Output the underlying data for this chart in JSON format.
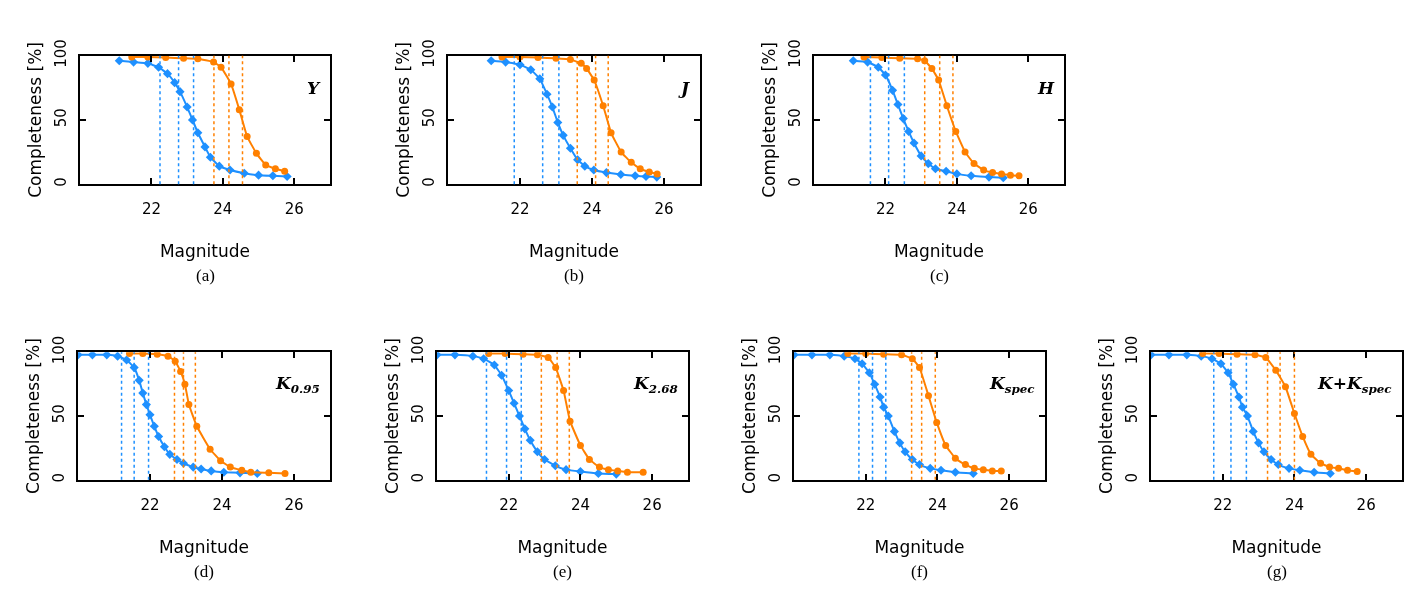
{
  "chart_data": [
    {
      "type": "line",
      "xlabel": "Magnitude",
      "ylabel": "Completeness [%]",
      "annotations": [
        "Y",
        "(a)"
      ],
      "xlim": [
        20,
        27
      ],
      "xticks": [
        22,
        24,
        26
      ],
      "ylim": [
        0,
        100
      ],
      "yticks": [
        0,
        50,
        100
      ],
      "line_style": "solid",
      "series": [
        {
          "color": "#1e90ff",
          "marker": "diamond",
          "x": [
            21.1,
            21.5,
            21.9,
            22.2,
            22.45,
            22.65,
            22.8,
            23.0,
            23.15,
            23.3,
            23.5,
            23.65,
            23.9,
            24.2,
            24.6,
            25.0,
            25.4,
            25.8
          ],
          "values": [
            96,
            95,
            94,
            91,
            86,
            79,
            72,
            60,
            50,
            40,
            29,
            21,
            14,
            11,
            8.5,
            7,
            6.5,
            6
          ]
        },
        {
          "color": "#ff8000",
          "marker": "circle",
          "x": [
            21.45,
            21.9,
            22.4,
            22.9,
            23.3,
            23.74,
            23.95,
            24.23,
            24.46,
            24.68,
            24.94,
            25.2,
            25.47,
            25.73
          ],
          "values": [
            99,
            99,
            98.5,
            98,
            97.5,
            95,
            91,
            78,
            58,
            37,
            24,
            15,
            12,
            10
          ]
        }
      ],
      "ref_lines": [
        {
          "axis": "x",
          "value": 22.24,
          "color": "#1e90ff",
          "line_style": "dotted"
        },
        {
          "axis": "x",
          "value": 22.76,
          "color": "#1e90ff",
          "line_style": "dotted"
        },
        {
          "axis": "x",
          "value": 23.18,
          "color": "#1e90ff",
          "line_style": "dotted"
        },
        {
          "axis": "x",
          "value": 23.75,
          "color": "#ff8000",
          "line_style": "dotted"
        },
        {
          "axis": "x",
          "value": 24.17,
          "color": "#ff8000",
          "line_style": "dotted"
        },
        {
          "axis": "x",
          "value": 24.55,
          "color": "#ff8000",
          "line_style": "dotted"
        }
      ]
    },
    {
      "type": "line",
      "xlabel": "Magnitude",
      "ylabel": "Completeness [%]",
      "annotations": [
        "J",
        "(b)"
      ],
      "xlim": [
        20,
        27
      ],
      "xticks": [
        22,
        24,
        26
      ],
      "ylim": [
        0,
        100
      ],
      "yticks": [
        0,
        50,
        100
      ],
      "line_style": "solid",
      "series": [
        {
          "color": "#1e90ff",
          "marker": "diamond",
          "x": [
            21.2,
            21.6,
            22.0,
            22.3,
            22.55,
            22.75,
            22.9,
            23.05,
            23.2,
            23.4,
            23.6,
            23.8,
            24.05,
            24.4,
            24.8,
            25.2,
            25.5,
            25.8
          ],
          "values": [
            96,
            95,
            93,
            89,
            82,
            70,
            60,
            48,
            38,
            28,
            19,
            14,
            11,
            9,
            7.5,
            6.5,
            6,
            5.5
          ]
        },
        {
          "color": "#ff8000",
          "marker": "circle",
          "x": [
            21.5,
            22.0,
            22.5,
            23.0,
            23.4,
            23.7,
            23.85,
            24.06,
            24.31,
            24.53,
            24.81,
            25.09,
            25.34,
            25.59,
            25.81
          ],
          "values": [
            99,
            99,
            98.5,
            98,
            97,
            94,
            90,
            81,
            61,
            40,
            25,
            17,
            12,
            9.5,
            8
          ]
        }
      ],
      "ref_lines": [
        {
          "axis": "x",
          "value": 21.84,
          "color": "#1e90ff",
          "line_style": "dotted"
        },
        {
          "axis": "x",
          "value": 22.63,
          "color": "#1e90ff",
          "line_style": "dotted"
        },
        {
          "axis": "x",
          "value": 23.08,
          "color": "#1e90ff",
          "line_style": "dotted"
        },
        {
          "axis": "x",
          "value": 23.59,
          "color": "#ff8000",
          "line_style": "dotted"
        },
        {
          "axis": "x",
          "value": 24.1,
          "color": "#ff8000",
          "line_style": "dotted"
        },
        {
          "axis": "x",
          "value": 24.45,
          "color": "#ff8000",
          "line_style": "dotted"
        }
      ]
    },
    {
      "type": "line",
      "xlabel": "Magnitude",
      "ylabel": "Completeness [%]",
      "annotations": [
        "H",
        "(c)"
      ],
      "xlim": [
        20,
        27
      ],
      "xticks": [
        22,
        24,
        26
      ],
      "ylim": [
        0,
        100
      ],
      "yticks": [
        0,
        50,
        100
      ],
      "line_style": "solid",
      "series": [
        {
          "color": "#1e90ff",
          "marker": "diamond",
          "x": [
            21.1,
            21.5,
            21.8,
            22.0,
            22.2,
            22.35,
            22.5,
            22.65,
            22.8,
            23.0,
            23.2,
            23.4,
            23.7,
            24.0,
            24.4,
            24.9,
            25.3
          ],
          "values": [
            96,
            95,
            91,
            85,
            73,
            62,
            51,
            41,
            32,
            22,
            16,
            12,
            10,
            8,
            6.5,
            5.5,
            5
          ]
        },
        {
          "color": "#ff8000",
          "marker": "circle",
          "x": [
            21.4,
            21.9,
            22.4,
            22.9,
            23.1,
            23.3,
            23.49,
            23.72,
            23.97,
            24.23,
            24.48,
            24.75,
            25.0,
            25.25,
            25.5,
            25.74
          ],
          "values": [
            99,
            98.5,
            98,
            97.5,
            96,
            90,
            81,
            61,
            41,
            25,
            16,
            11,
            9,
            8,
            7,
            6.5
          ]
        }
      ],
      "ref_lines": [
        {
          "axis": "x",
          "value": 21.58,
          "color": "#1e90ff",
          "line_style": "dotted"
        },
        {
          "axis": "x",
          "value": 22.09,
          "color": "#1e90ff",
          "line_style": "dotted"
        },
        {
          "axis": "x",
          "value": 22.53,
          "color": "#1e90ff",
          "line_style": "dotted"
        },
        {
          "axis": "x",
          "value": 23.1,
          "color": "#ff8000",
          "line_style": "dotted"
        },
        {
          "axis": "x",
          "value": 23.52,
          "color": "#ff8000",
          "line_style": "dotted"
        },
        {
          "axis": "x",
          "value": 23.89,
          "color": "#ff8000",
          "line_style": "dotted"
        }
      ]
    },
    {
      "type": "line",
      "xlabel": "Magnitude",
      "ylabel": "Completeness [%]",
      "annotations": [
        "K$_{0.95}$",
        "(d)"
      ],
      "xlim": [
        20,
        27
      ],
      "xticks": [
        22,
        24,
        26
      ],
      "ylim": [
        0,
        100
      ],
      "yticks": [
        0,
        50,
        100
      ],
      "line_style": "solid",
      "series": [
        {
          "color": "#1e90ff",
          "marker": "diamond",
          "x": [
            20.0,
            20.4,
            20.8,
            21.1,
            21.35,
            21.56,
            21.7,
            21.8,
            21.9,
            22.0,
            22.12,
            22.24,
            22.4,
            22.55,
            22.75,
            22.93,
            23.2,
            23.42,
            23.7,
            24.05,
            24.5,
            24.98
          ],
          "values": [
            98,
            98,
            98,
            97,
            94,
            88,
            78,
            68,
            59,
            51,
            42,
            34,
            26,
            20,
            16,
            13,
            10,
            8.5,
            7,
            6,
            5.5,
            5
          ]
        },
        {
          "color": "#ff8000",
          "marker": "circle",
          "x": [
            21.43,
            21.8,
            22.2,
            22.5,
            22.7,
            22.85,
            22.97,
            23.08,
            23.3,
            23.67,
            23.96,
            24.23,
            24.55,
            24.8,
            25.3,
            25.75
          ],
          "values": [
            99,
            99,
            98.5,
            97,
            93,
            85,
            75,
            59,
            42,
            24,
            15,
            10,
            7.5,
            6,
            5.5,
            5
          ]
        }
      ],
      "ref_lines": [
        {
          "axis": "x",
          "value": 21.21,
          "color": "#1e90ff",
          "line_style": "dotted"
        },
        {
          "axis": "x",
          "value": 21.56,
          "color": "#1e90ff",
          "line_style": "dotted"
        },
        {
          "axis": "x",
          "value": 21.96,
          "color": "#1e90ff",
          "line_style": "dotted"
        },
        {
          "axis": "x",
          "value": 22.68,
          "color": "#ff8000",
          "line_style": "dotted"
        },
        {
          "axis": "x",
          "value": 22.93,
          "color": "#ff8000",
          "line_style": "dotted"
        },
        {
          "axis": "x",
          "value": 23.26,
          "color": "#ff8000",
          "line_style": "dotted"
        }
      ]
    },
    {
      "type": "line",
      "xlabel": "Magnitude",
      "ylabel": "Completeness [%]",
      "annotations": [
        "K$_{2.68}$",
        "(e)"
      ],
      "xlim": [
        20,
        27
      ],
      "xticks": [
        22,
        24,
        26
      ],
      "ylim": [
        0,
        100
      ],
      "yticks": [
        0,
        50,
        100
      ],
      "line_style": "solid",
      "series": [
        {
          "color": "#1e90ff",
          "marker": "diamond",
          "x": [
            20.0,
            20.5,
            21.0,
            21.3,
            21.6,
            21.8,
            22.0,
            22.15,
            22.3,
            22.45,
            22.6,
            22.8,
            23.0,
            23.3,
            23.6,
            24.0,
            24.5,
            25.0
          ],
          "values": [
            98,
            98,
            97,
            95,
            90,
            82,
            70,
            60,
            50,
            40,
            31,
            22,
            16,
            11,
            8,
            6.5,
            5,
            4.5
          ]
        },
        {
          "color": "#ff8000",
          "marker": "circle",
          "x": [
            21.44,
            21.9,
            22.4,
            22.8,
            23.1,
            23.31,
            23.53,
            23.71,
            24.0,
            24.25,
            24.53,
            24.78,
            25.04,
            25.31,
            25.75
          ],
          "values": [
            99,
            99,
            98.5,
            98,
            96,
            88,
            70,
            46,
            27,
            16,
            10,
            8,
            7,
            6,
            6
          ]
        }
      ],
      "ref_lines": [
        {
          "axis": "x",
          "value": 21.38,
          "color": "#1e90ff",
          "line_style": "dotted"
        },
        {
          "axis": "x",
          "value": 21.94,
          "color": "#1e90ff",
          "line_style": "dotted"
        },
        {
          "axis": "x",
          "value": 22.35,
          "color": "#1e90ff",
          "line_style": "dotted"
        },
        {
          "axis": "x",
          "value": 22.91,
          "color": "#ff8000",
          "line_style": "dotted"
        },
        {
          "axis": "x",
          "value": 23.35,
          "color": "#ff8000",
          "line_style": "dotted"
        },
        {
          "axis": "x",
          "value": 23.69,
          "color": "#ff8000",
          "line_style": "dotted"
        }
      ]
    },
    {
      "type": "line",
      "xlabel": "Magnitude",
      "ylabel": "Completeness [%]",
      "annotations": [
        "K$_{spec}$",
        "(f)"
      ],
      "xlim": [
        20,
        27
      ],
      "xticks": [
        22,
        24,
        26
      ],
      "ylim": [
        0,
        100
      ],
      "yticks": [
        0,
        50,
        100
      ],
      "line_style": "solid",
      "series": [
        {
          "color": "#1e90ff",
          "marker": "diamond",
          "x": [
            20.0,
            20.5,
            21.0,
            21.4,
            21.7,
            21.9,
            22.1,
            22.25,
            22.4,
            22.5,
            22.63,
            22.8,
            22.95,
            23.1,
            23.3,
            23.5,
            23.8,
            24.1,
            24.5,
            25.0
          ],
          "values": [
            98,
            98,
            98,
            97,
            95,
            91,
            84,
            75,
            65,
            57,
            50,
            38,
            29,
            22,
            16,
            12,
            9,
            7.5,
            6,
            5
          ]
        },
        {
          "color": "#ff8000",
          "marker": "circle",
          "x": [
            21.5,
            22.0,
            22.5,
            23.0,
            23.3,
            23.5,
            23.75,
            23.98,
            24.23,
            24.5,
            24.78,
            25.03,
            25.28,
            25.53,
            25.78
          ],
          "values": [
            99,
            99,
            98.5,
            98,
            95,
            88,
            66,
            45,
            27,
            17,
            12,
            9,
            8,
            7,
            7
          ]
        }
      ],
      "ref_lines": [
        {
          "axis": "x",
          "value": 21.81,
          "color": "#1e90ff",
          "line_style": "dotted"
        },
        {
          "axis": "x",
          "value": 22.19,
          "color": "#1e90ff",
          "line_style": "dotted"
        },
        {
          "axis": "x",
          "value": 22.56,
          "color": "#1e90ff",
          "line_style": "dotted"
        },
        {
          "axis": "x",
          "value": 23.28,
          "color": "#ff8000",
          "line_style": "dotted"
        },
        {
          "axis": "x",
          "value": 23.56,
          "color": "#ff8000",
          "line_style": "dotted"
        },
        {
          "axis": "x",
          "value": 23.94,
          "color": "#ff8000",
          "line_style": "dotted"
        }
      ]
    },
    {
      "type": "line",
      "xlabel": "Magnitude",
      "ylabel": "Completeness [%]",
      "annotations": [
        "K+K$_{spec}$",
        "(g)"
      ],
      "xlim": [
        20,
        27
      ],
      "xticks": [
        22,
        24,
        26
      ],
      "ylim": [
        0,
        100
      ],
      "yticks": [
        0,
        50,
        100
      ],
      "line_style": "solid",
      "series": [
        {
          "color": "#1e90ff",
          "marker": "diamond",
          "x": [
            20.0,
            20.5,
            21.0,
            21.4,
            21.7,
            21.95,
            22.15,
            22.3,
            22.45,
            22.55,
            22.69,
            22.85,
            23.0,
            23.15,
            23.35,
            23.55,
            23.85,
            24.15,
            24.55,
            25.0
          ],
          "values": [
            98,
            98,
            98,
            97,
            95,
            91,
            84,
            75,
            65,
            57,
            50,
            38,
            29,
            22,
            16,
            12,
            9,
            7.5,
            6,
            5
          ]
        },
        {
          "color": "#ff8000",
          "marker": "circle",
          "x": [
            21.44,
            21.9,
            22.4,
            22.9,
            23.2,
            23.48,
            23.75,
            24.0,
            24.23,
            24.46,
            24.73,
            24.98,
            25.23,
            25.48,
            25.75
          ],
          "values": [
            99,
            99,
            98.5,
            98,
            96,
            86,
            73,
            52,
            34,
            20,
            13,
            10,
            9,
            7.5,
            6.5
          ]
        }
      ],
      "ref_lines": [
        {
          "axis": "x",
          "value": 21.75,
          "color": "#1e90ff",
          "line_style": "dotted"
        },
        {
          "axis": "x",
          "value": 22.23,
          "color": "#1e90ff",
          "line_style": "dotted"
        },
        {
          "axis": "x",
          "value": 22.66,
          "color": "#1e90ff",
          "line_style": "dotted"
        },
        {
          "axis": "x",
          "value": 23.25,
          "color": "#ff8000",
          "line_style": "dotted"
        },
        {
          "axis": "x",
          "value": 23.6,
          "color": "#ff8000",
          "line_style": "dotted"
        },
        {
          "axis": "x",
          "value": 24.0,
          "color": "#ff8000",
          "line_style": "dotted"
        }
      ]
    }
  ]
}
